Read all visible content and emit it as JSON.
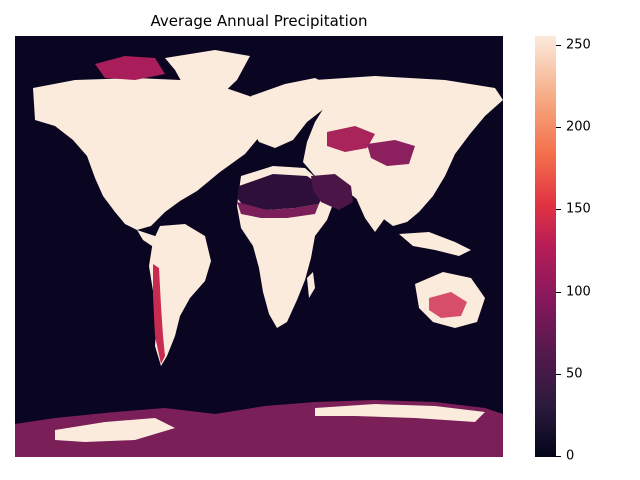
{
  "title": "Average Annual Precipitation",
  "colorbar": {
    "ticks": [
      "0",
      "50",
      "100",
      "150",
      "200",
      "250"
    ],
    "colormap": "rocket",
    "range": [
      0,
      255
    ]
  },
  "colors": {
    "ocean": "#0a0520",
    "wet": "#faebdd",
    "arid": "#2d0f3a",
    "semi_arid": "#7a1f57",
    "coastal": "#c82a52"
  }
}
